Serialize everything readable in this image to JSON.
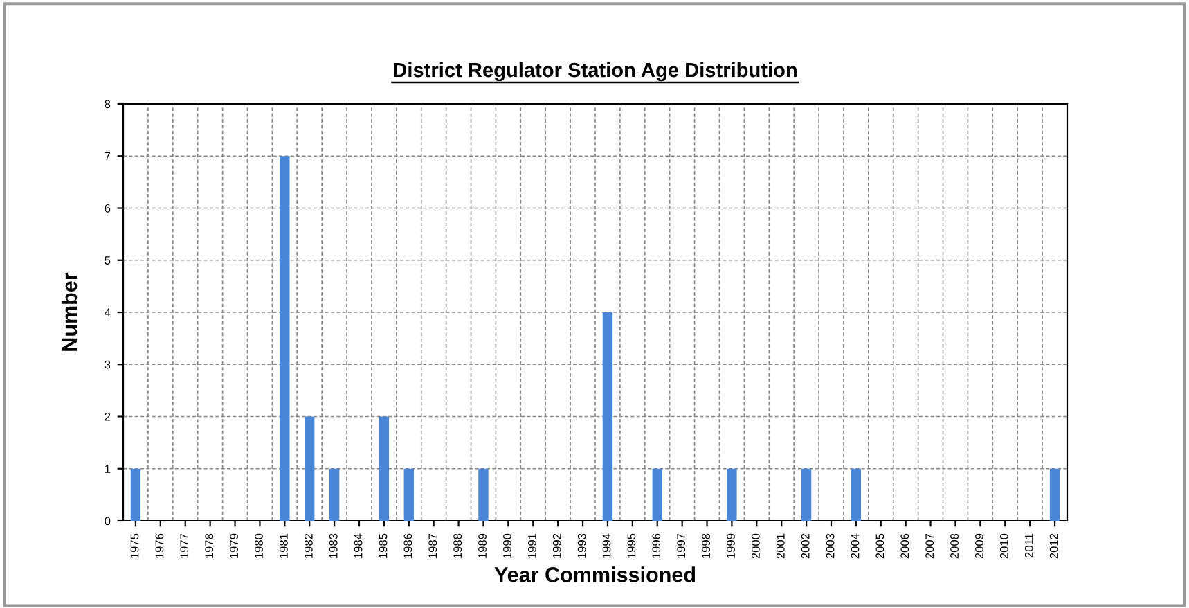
{
  "chart_data": {
    "type": "bar",
    "title": "District Regulator Station Age Distribution",
    "xlabel": "Year Commissioned",
    "ylabel": "Number",
    "categories": [
      "1975",
      "1976",
      "1977",
      "1978",
      "1979",
      "1980",
      "1981",
      "1982",
      "1983",
      "1984",
      "1985",
      "1986",
      "1987",
      "1988",
      "1989",
      "1990",
      "1991",
      "1992",
      "1993",
      "1994",
      "1995",
      "1996",
      "1997",
      "1998",
      "1999",
      "2000",
      "2001",
      "2002",
      "2003",
      "2004",
      "2005",
      "2006",
      "2007",
      "2008",
      "2009",
      "2010",
      "2011",
      "2012"
    ],
    "values": [
      1,
      0,
      0,
      0,
      0,
      0,
      7,
      2,
      1,
      0,
      2,
      1,
      0,
      0,
      1,
      0,
      0,
      0,
      0,
      4,
      0,
      1,
      0,
      0,
      1,
      0,
      0,
      1,
      0,
      1,
      0,
      0,
      0,
      0,
      0,
      0,
      0,
      1
    ],
    "color": "#4a86d8",
    "ylim": [
      0,
      8
    ],
    "yticks": [
      0,
      1,
      2,
      3,
      4,
      5,
      6,
      7,
      8
    ],
    "grid": true
  }
}
